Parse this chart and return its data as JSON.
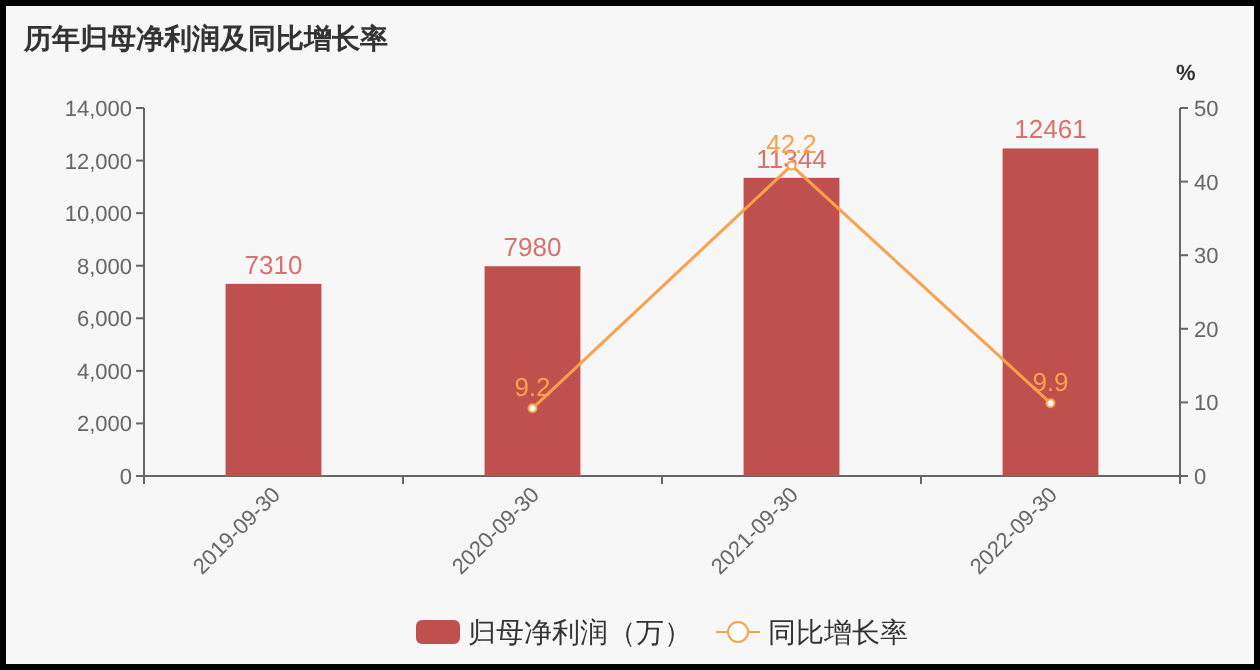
{
  "chart_data": {
    "type": "bar",
    "title": "历年归母净利润及同比增长率",
    "y2label": "%",
    "categories": [
      "2019-09-30",
      "2020-09-30",
      "2021-09-30",
      "2022-09-30"
    ],
    "series": [
      {
        "name": "归母净利润（万）",
        "color": "#c0504d",
        "values": [
          7310,
          7980,
          11344,
          12461
        ]
      },
      {
        "name": "同比增长率",
        "type": "line",
        "axis": "y2",
        "color": "#f9a24b",
        "values": [
          null,
          9.2,
          42.2,
          9.9
        ]
      }
    ],
    "ylim": [
      0,
      14000
    ],
    "yticks": [
      {
        "value": 0,
        "label": "0"
      },
      {
        "value": 2000,
        "label": "2,000"
      },
      {
        "value": 4000,
        "label": "4,000"
      },
      {
        "value": 6000,
        "label": "6,000"
      },
      {
        "value": 8000,
        "label": "8,000"
      },
      {
        "value": 10000,
        "label": "10,000"
      },
      {
        "value": 12000,
        "label": "12,000"
      },
      {
        "value": 14000,
        "label": "14,000"
      }
    ],
    "y2lim": [
      0,
      50
    ],
    "y2ticks": [
      0,
      10,
      20,
      30,
      40,
      50
    ],
    "data_labels": true,
    "legend": "bottom",
    "grid": false,
    "marker": "circle"
  }
}
